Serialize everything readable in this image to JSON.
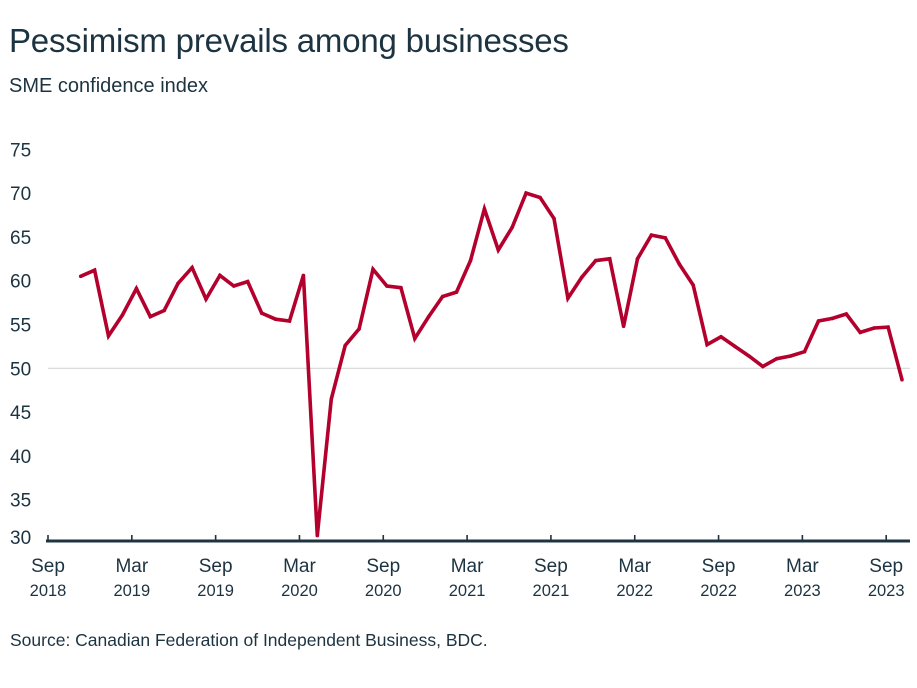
{
  "colors": {
    "line": "#b3002d",
    "axis": "#1f3340",
    "text": "#1c3341",
    "reference_line": "#d6d6d6"
  },
  "chart_data": {
    "type": "line",
    "title": "Pessimism prevails among businesses",
    "subtitle": "SME confidence index",
    "source": "Source: Canadian Federation of Independent Business, BDC.",
    "xlabel": "",
    "ylabel": "",
    "ylim": [
      30,
      75
    ],
    "yticks": [
      "75",
      "70",
      "65",
      "60",
      "55",
      "50",
      "45",
      "40",
      "35",
      "30"
    ],
    "ytick_values": [
      75,
      70,
      65,
      60,
      55,
      50,
      45,
      40,
      35,
      30
    ],
    "reference_line": 50,
    "grid": false,
    "legend": "none",
    "xticks": [
      {
        "month": "Sep",
        "year": "2018",
        "index": 0
      },
      {
        "month": "Mar",
        "year": "2019",
        "index": 6
      },
      {
        "month": "Sep",
        "year": "2019",
        "index": 12
      },
      {
        "month": "Mar",
        "year": "2020",
        "index": 18
      },
      {
        "month": "Sep",
        "year": "2020",
        "index": 24
      },
      {
        "month": "Mar",
        "year": "2021",
        "index": 30
      },
      {
        "month": "Sep",
        "year": "2021",
        "index": 36
      },
      {
        "month": "Mar",
        "year": "2022",
        "index": 42
      },
      {
        "month": "Sep",
        "year": "2022",
        "index": 48
      },
      {
        "month": "Mar",
        "year": "2023",
        "index": 54
      },
      {
        "month": "Sep",
        "year": "2023",
        "index": 60
      }
    ],
    "series": [
      {
        "name": "SME confidence index",
        "x": [
          "2018-11",
          "2018-12",
          "2019-01",
          "2019-02",
          "2019-03",
          "2019-04",
          "2019-05",
          "2019-06",
          "2019-07",
          "2019-08",
          "2019-09",
          "2019-10",
          "2019-11",
          "2019-12",
          "2020-01",
          "2020-02",
          "2020-03",
          "2020-04",
          "2020-05",
          "2020-06",
          "2020-07",
          "2020-08",
          "2020-09",
          "2020-10",
          "2020-11",
          "2020-12",
          "2021-01",
          "2021-02",
          "2021-03",
          "2021-04",
          "2021-05",
          "2021-06",
          "2021-07",
          "2021-08",
          "2021-09",
          "2021-10",
          "2021-11",
          "2021-12",
          "2022-01",
          "2022-02",
          "2022-03",
          "2022-04",
          "2022-05",
          "2022-06",
          "2022-07",
          "2022-08",
          "2022-09",
          "2022-10",
          "2022-11",
          "2022-12",
          "2023-01",
          "2023-02",
          "2023-03",
          "2023-04",
          "2023-05",
          "2023-06",
          "2023-07",
          "2023-08",
          "2023-09",
          "2023-10"
        ],
        "values": [
          60.5,
          61.2,
          53.7,
          56.1,
          59.1,
          55.9,
          56.6,
          59.7,
          61.5,
          57.9,
          60.6,
          59.4,
          59.9,
          56.3,
          55.6,
          55.4,
          60.6,
          30.9,
          46.5,
          52.6,
          54.5,
          61.3,
          59.4,
          59.2,
          53.4,
          55.9,
          58.2,
          58.7,
          62.3,
          68.2,
          63.5,
          66.1,
          70.0,
          69.5,
          67.1,
          58.0,
          60.4,
          62.3,
          62.5,
          54.8,
          62.5,
          65.2,
          64.9,
          61.9,
          59.5,
          52.7,
          53.6,
          52.5,
          51.4,
          50.2,
          51.1,
          51.4,
          51.9,
          55.4,
          55.7,
          56.2,
          54.1,
          54.6,
          54.7,
          48.7
        ]
      }
    ]
  }
}
